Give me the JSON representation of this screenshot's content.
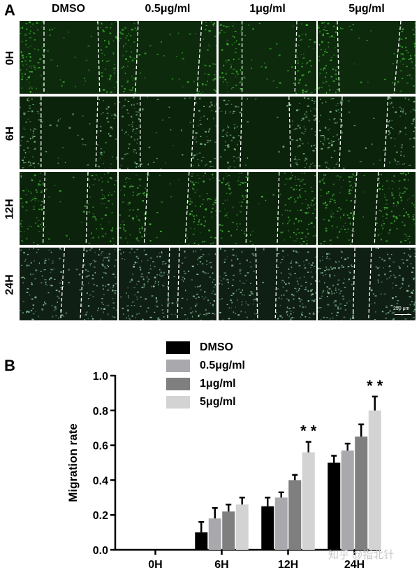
{
  "panel_a": {
    "letter": "A",
    "columns": [
      "DMSO",
      "0.5μg/ml",
      "1μg/ml",
      "5μg/ml"
    ],
    "rows": [
      "0H",
      "6H",
      "12H",
      "24H"
    ],
    "scale_bar": "250 μm"
  },
  "panel_b": {
    "letter": "B"
  },
  "chart_data": {
    "type": "bar",
    "categories": [
      "0H",
      "6H",
      "12H",
      "24H"
    ],
    "series": [
      {
        "name": "DMSO",
        "color": "#000000",
        "values": [
          0,
          0.1,
          0.25,
          0.5
        ],
        "errors": [
          0,
          0.06,
          0.05,
          0.04
        ]
      },
      {
        "name": "0.5μg/ml",
        "color": "#a8a8ad",
        "values": [
          0,
          0.18,
          0.3,
          0.57
        ],
        "errors": [
          0,
          0.06,
          0.03,
          0.04
        ]
      },
      {
        "name": "1μg/ml",
        "color": "#7f7f7f",
        "values": [
          0,
          0.22,
          0.4,
          0.65
        ],
        "errors": [
          0,
          0.04,
          0.03,
          0.07
        ]
      },
      {
        "name": "5μg/ml",
        "color": "#d3d3d3",
        "values": [
          0,
          0.26,
          0.56,
          0.8
        ],
        "errors": [
          0,
          0.04,
          0.06,
          0.08
        ]
      }
    ],
    "ylabel": "Migration rate",
    "ylim": [
      0,
      1.0
    ],
    "yticks": [
      "0.0",
      "0.2",
      "0.4",
      "0.6",
      "0.8",
      "1.0"
    ],
    "annotations": [
      {
        "category": "12H",
        "text": "* *"
      },
      {
        "category": "24H",
        "text": "* *"
      }
    ],
    "legend_placement": "top-left"
  },
  "watermark": "知乎 @指北针"
}
